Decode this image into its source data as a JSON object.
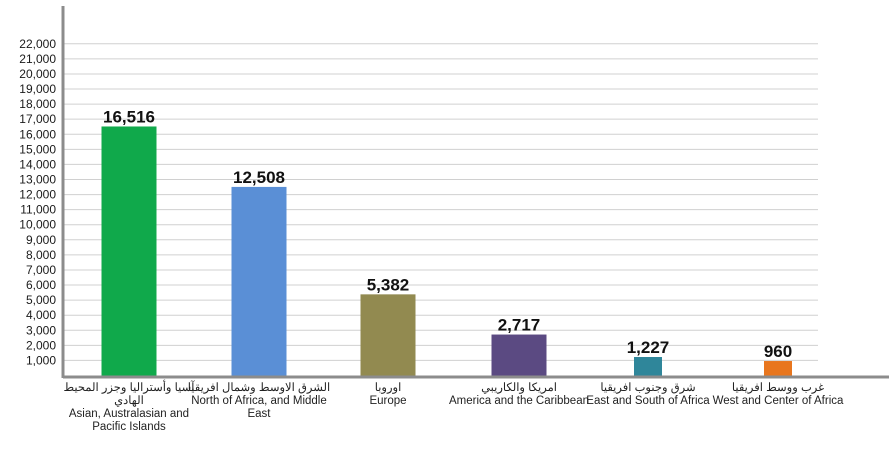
{
  "chart_data": {
    "type": "bar",
    "title": "",
    "xlabel": "",
    "ylabel": "",
    "ylim": [
      0,
      22000
    ],
    "yticks": [
      1000,
      2000,
      3000,
      4000,
      5000,
      6000,
      7000,
      8000,
      9000,
      10000,
      11000,
      12000,
      13000,
      14000,
      15000,
      16000,
      17000,
      18000,
      19000,
      20000,
      21000,
      22000
    ],
    "ytick_labels": [
      "1,000",
      "2,000",
      "3,000",
      "4,000",
      "5,000",
      "6,000",
      "7,000",
      "8,000",
      "9,000",
      "10,000",
      "11,000",
      "12,000",
      "13,000",
      "14,000",
      "15,000",
      "16,000",
      "17,000",
      "18,000",
      "19,000",
      "20,000",
      "21,000",
      "22,000"
    ],
    "grid": true,
    "categories": [
      {
        "ar": "آسيا وأستراليا وجزر المحيط الهادي",
        "en": "Asian, Australasian and Pacific Islands"
      },
      {
        "ar": "الشرق الاوسط وشمال افريقيا",
        "en": "North of Africa, and Middle East"
      },
      {
        "ar": "اوروبا",
        "en": "Europe"
      },
      {
        "ar": "امريكا والكاريبي",
        "en": "America and the Caribbean"
      },
      {
        "ar": "شرق وجنوب افريقيا",
        "en": "East and South of Africa"
      },
      {
        "ar": "غرب ووسط افريقيا",
        "en": "West and Center of Africa"
      }
    ],
    "values": [
      16516,
      12508,
      5382,
      2717,
      1227,
      960
    ],
    "value_labels": [
      "16,516",
      "12,508",
      "5,382",
      "2,717",
      "1,227",
      "960"
    ],
    "colors": [
      "#10a94b",
      "#5a8fd6",
      "#928a50",
      "#5b4a82",
      "#2f869a",
      "#e8761e"
    ]
  }
}
